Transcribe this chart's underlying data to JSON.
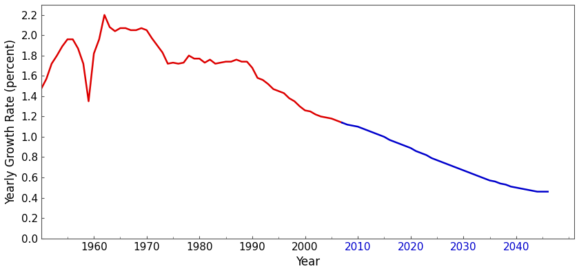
{
  "xlabel": "Year",
  "ylabel": "Yearly Growth Rate (percent)",
  "xlim": [
    1950,
    2051
  ],
  "ylim": [
    0,
    2.3
  ],
  "yticks": [
    0,
    0.2,
    0.4,
    0.6,
    0.8,
    1.0,
    1.2,
    1.4,
    1.6,
    1.8,
    2.0,
    2.2
  ],
  "xticks_red": [
    1960,
    1970,
    1980,
    1990,
    2000
  ],
  "xticks_blue": [
    2010,
    2020,
    2030,
    2040
  ],
  "red_color": "#dd0000",
  "blue_color": "#0000cc",
  "red_data": [
    [
      1950,
      1.47
    ],
    [
      1951,
      1.57
    ],
    [
      1952,
      1.72
    ],
    [
      1953,
      1.8
    ],
    [
      1954,
      1.89
    ],
    [
      1955,
      1.96
    ],
    [
      1956,
      1.96
    ],
    [
      1957,
      1.87
    ],
    [
      1958,
      1.72
    ],
    [
      1959,
      1.35
    ],
    [
      1960,
      1.82
    ],
    [
      1961,
      1.96
    ],
    [
      1962,
      2.2
    ],
    [
      1963,
      2.08
    ],
    [
      1964,
      2.04
    ],
    [
      1965,
      2.07
    ],
    [
      1966,
      2.07
    ],
    [
      1967,
      2.05
    ],
    [
      1968,
      2.05
    ],
    [
      1969,
      2.07
    ],
    [
      1970,
      2.05
    ],
    [
      1971,
      1.97
    ],
    [
      1972,
      1.9
    ],
    [
      1973,
      1.83
    ],
    [
      1974,
      1.72
    ],
    [
      1975,
      1.73
    ],
    [
      1976,
      1.72
    ],
    [
      1977,
      1.73
    ],
    [
      1978,
      1.8
    ],
    [
      1979,
      1.77
    ],
    [
      1980,
      1.77
    ],
    [
      1981,
      1.73
    ],
    [
      1982,
      1.76
    ],
    [
      1983,
      1.72
    ],
    [
      1984,
      1.73
    ],
    [
      1985,
      1.74
    ],
    [
      1986,
      1.74
    ],
    [
      1987,
      1.76
    ],
    [
      1988,
      1.74
    ],
    [
      1989,
      1.74
    ],
    [
      1990,
      1.68
    ],
    [
      1991,
      1.58
    ],
    [
      1992,
      1.56
    ],
    [
      1993,
      1.52
    ],
    [
      1994,
      1.47
    ],
    [
      1995,
      1.45
    ],
    [
      1996,
      1.43
    ],
    [
      1997,
      1.38
    ],
    [
      1998,
      1.35
    ],
    [
      1999,
      1.3
    ],
    [
      2000,
      1.26
    ],
    [
      2001,
      1.25
    ],
    [
      2002,
      1.22
    ],
    [
      2003,
      1.2
    ],
    [
      2004,
      1.19
    ],
    [
      2005,
      1.18
    ],
    [
      2006,
      1.16
    ],
    [
      2007,
      1.14
    ]
  ],
  "blue_data": [
    [
      2007,
      1.14
    ],
    [
      2008,
      1.12
    ],
    [
      2009,
      1.11
    ],
    [
      2010,
      1.1
    ],
    [
      2011,
      1.08
    ],
    [
      2012,
      1.06
    ],
    [
      2013,
      1.04
    ],
    [
      2014,
      1.02
    ],
    [
      2015,
      1.0
    ],
    [
      2016,
      0.97
    ],
    [
      2017,
      0.95
    ],
    [
      2018,
      0.93
    ],
    [
      2019,
      0.91
    ],
    [
      2020,
      0.89
    ],
    [
      2021,
      0.86
    ],
    [
      2022,
      0.84
    ],
    [
      2023,
      0.82
    ],
    [
      2024,
      0.79
    ],
    [
      2025,
      0.77
    ],
    [
      2026,
      0.75
    ],
    [
      2027,
      0.73
    ],
    [
      2028,
      0.71
    ],
    [
      2029,
      0.69
    ],
    [
      2030,
      0.67
    ],
    [
      2031,
      0.65
    ],
    [
      2032,
      0.63
    ],
    [
      2033,
      0.61
    ],
    [
      2034,
      0.59
    ],
    [
      2035,
      0.57
    ],
    [
      2036,
      0.56
    ],
    [
      2037,
      0.54
    ],
    [
      2038,
      0.53
    ],
    [
      2039,
      0.51
    ],
    [
      2040,
      0.5
    ],
    [
      2041,
      0.49
    ],
    [
      2042,
      0.48
    ],
    [
      2043,
      0.47
    ],
    [
      2044,
      0.46
    ],
    [
      2045,
      0.46
    ],
    [
      2046,
      0.46
    ]
  ],
  "figsize": [
    8.4,
    3.97
  ],
  "dpi": 100,
  "linewidth": 1.8,
  "tick_fontsize": 11,
  "axis_label_fontsize": 12,
  "spine_color": "#555555",
  "tick_color": "#555555"
}
